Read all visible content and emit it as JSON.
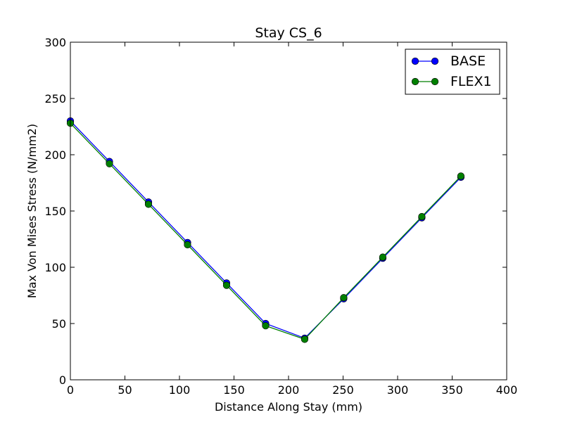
{
  "chart_data": {
    "type": "line",
    "title": "Stay CS_6",
    "xlabel": "Distance Along Stay (mm)",
    "ylabel": "Max Von Mises Stress (N/mm2)",
    "xlim": [
      0,
      400
    ],
    "ylim": [
      0,
      300
    ],
    "xticks": [
      "0",
      "50",
      "100",
      "150",
      "200",
      "250",
      "300",
      "350",
      "400"
    ],
    "yticks": [
      "0",
      "50",
      "100",
      "150",
      "200",
      "250",
      "300"
    ],
    "grid": false,
    "legend_position": "top-right",
    "series": [
      {
        "name": "BASE",
        "color": "#0000ff",
        "marker": "circle",
        "x": [
          0,
          35.8,
          71.6,
          107.4,
          143.2,
          179.0,
          214.8,
          250.6,
          286.4,
          322.2,
          358.0
        ],
        "y": [
          230,
          194,
          158,
          122,
          86,
          50,
          37,
          72,
          108,
          144,
          180
        ]
      },
      {
        "name": "FLEX1",
        "color": "#008000",
        "marker": "circle",
        "x": [
          0,
          35.8,
          71.6,
          107.4,
          143.2,
          179.0,
          214.8,
          250.6,
          286.4,
          322.2,
          358.0
        ],
        "y": [
          228,
          192,
          156,
          120,
          84,
          48,
          36,
          73,
          109,
          145,
          181
        ]
      }
    ]
  }
}
